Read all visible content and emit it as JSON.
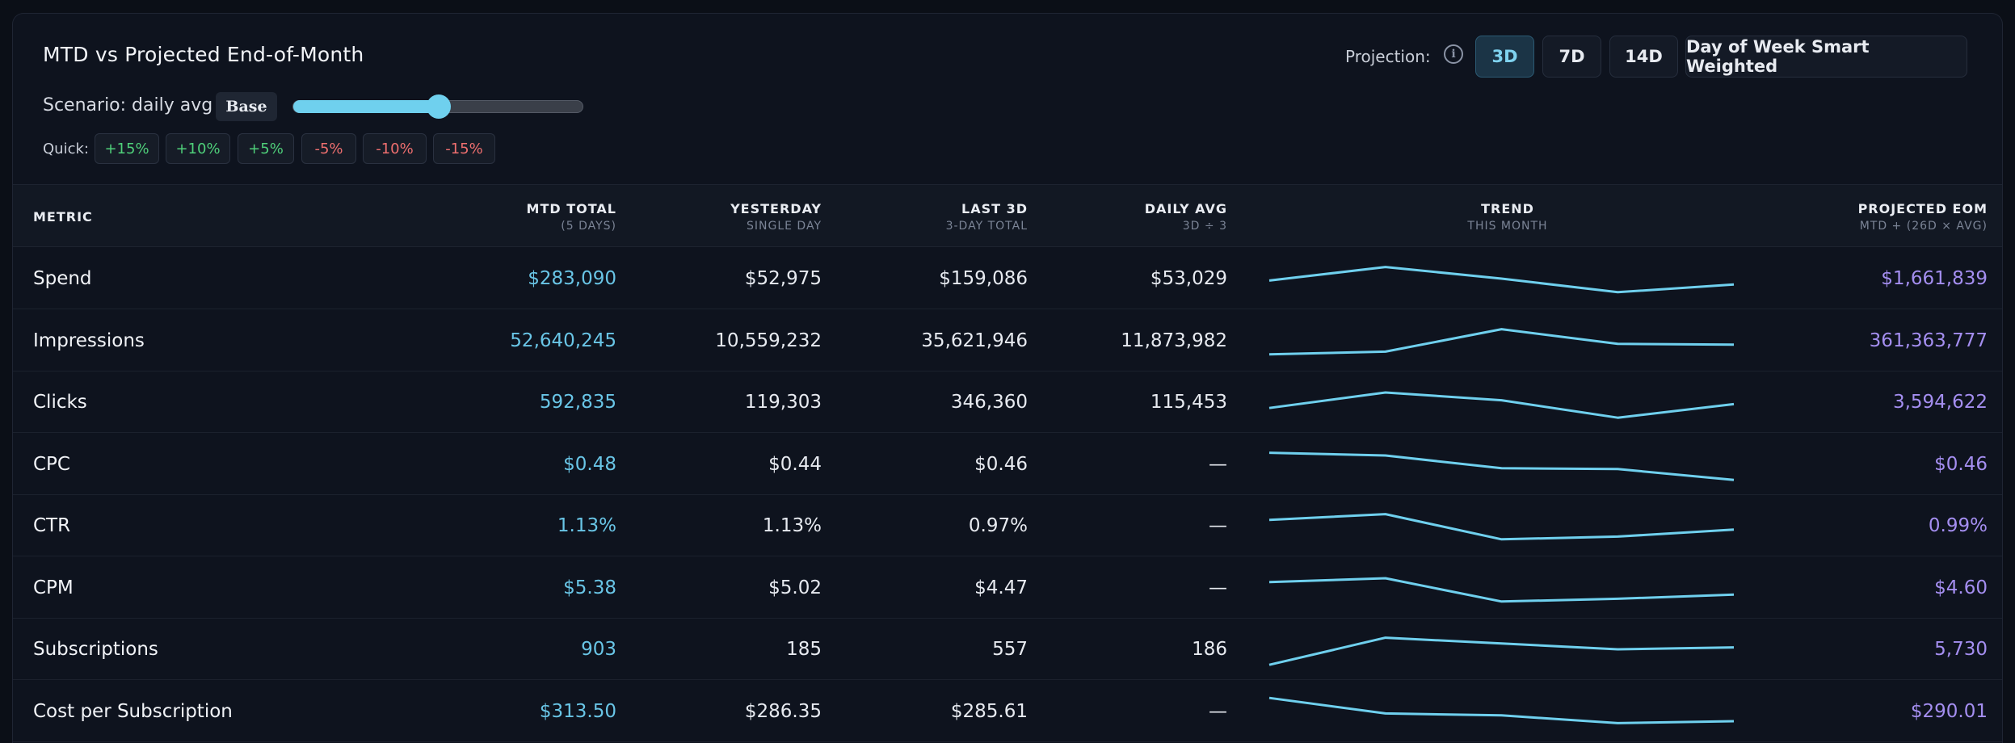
{
  "header": {
    "title": "MTD vs Projected End-of-Month",
    "projection_label": "Projection:",
    "info_icon": "info-icon",
    "projection_buttons": [
      {
        "label": "3D",
        "active": true
      },
      {
        "label": "7D",
        "active": false
      },
      {
        "label": "14D",
        "active": false
      },
      {
        "label": "Day of Week Smart Weighted",
        "active": false
      }
    ]
  },
  "scenario": {
    "label": "Scenario: daily avg",
    "badge": "Base",
    "slider_value_fraction": 0.5
  },
  "quick": {
    "label": "Quick:",
    "buttons": [
      "+15%",
      "+10%",
      "+5%",
      "-5%",
      "-10%",
      "-15%"
    ]
  },
  "table": {
    "columns": [
      {
        "title": "METRIC",
        "sub": ""
      },
      {
        "title": "MTD TOTAL",
        "sub": "(5 DAYS)"
      },
      {
        "title": "YESTERDAY",
        "sub": "SINGLE DAY"
      },
      {
        "title": "LAST 3D",
        "sub": "3-DAY TOTAL"
      },
      {
        "title": "DAILY AVG",
        "sub": "3D ÷ 3"
      },
      {
        "title": "TREND",
        "sub": "THIS MONTH"
      },
      {
        "title": "PROJECTED EOM",
        "sub": "MTD + (26D × AVG)"
      }
    ],
    "rows": [
      {
        "metric": "Spend",
        "mtd": "$283,090",
        "yesterday": "$52,975",
        "last3d": "$159,086",
        "daily_avg": "$53,029",
        "projected": "$1,661,839",
        "trend": [
          0.55,
          0.2,
          0.5,
          0.85,
          0.65
        ]
      },
      {
        "metric": "Impressions",
        "mtd": "52,640,245",
        "yesterday": "10,559,232",
        "last3d": "35,621,946",
        "daily_avg": "11,873,982",
        "projected": "361,363,777",
        "trend": [
          0.85,
          0.78,
          0.2,
          0.58,
          0.6
        ]
      },
      {
        "metric": "Clicks",
        "mtd": "592,835",
        "yesterday": "119,303",
        "last3d": "346,360",
        "daily_avg": "115,453",
        "projected": "3,594,622",
        "trend": [
          0.65,
          0.25,
          0.45,
          0.9,
          0.55
        ]
      },
      {
        "metric": "CPC",
        "mtd": "$0.48",
        "yesterday": "$0.44",
        "last3d": "$0.46",
        "daily_avg": "—",
        "projected": "$0.46",
        "trend": [
          0.2,
          0.27,
          0.6,
          0.62,
          0.9
        ]
      },
      {
        "metric": "CTR",
        "mtd": "1.13%",
        "yesterday": "1.13%",
        "last3d": "0.97%",
        "daily_avg": "—",
        "projected": "0.99%",
        "trend": [
          0.35,
          0.2,
          0.85,
          0.78,
          0.6
        ]
      },
      {
        "metric": "CPM",
        "mtd": "$5.38",
        "yesterday": "$5.02",
        "last3d": "$4.47",
        "daily_avg": "—",
        "projected": "$4.60",
        "trend": [
          0.35,
          0.25,
          0.85,
          0.78,
          0.67
        ]
      },
      {
        "metric": "Subscriptions",
        "mtd": "903",
        "yesterday": "185",
        "last3d": "557",
        "daily_avg": "186",
        "projected": "5,730",
        "trend": [
          0.9,
          0.2,
          0.35,
          0.5,
          0.45
        ]
      },
      {
        "metric": "Cost per Subscription",
        "mtd": "$313.50",
        "yesterday": "$286.35",
        "last3d": "$285.61",
        "daily_avg": "—",
        "projected": "$290.01",
        "trend": [
          0.15,
          0.55,
          0.6,
          0.8,
          0.75
        ]
      }
    ]
  },
  "colors": {
    "accent": "#6fd0ee",
    "mtd": "#69c5e6",
    "projected": "#a48ef0",
    "positive": "#4fd07a",
    "negative": "#ef6f6f"
  }
}
